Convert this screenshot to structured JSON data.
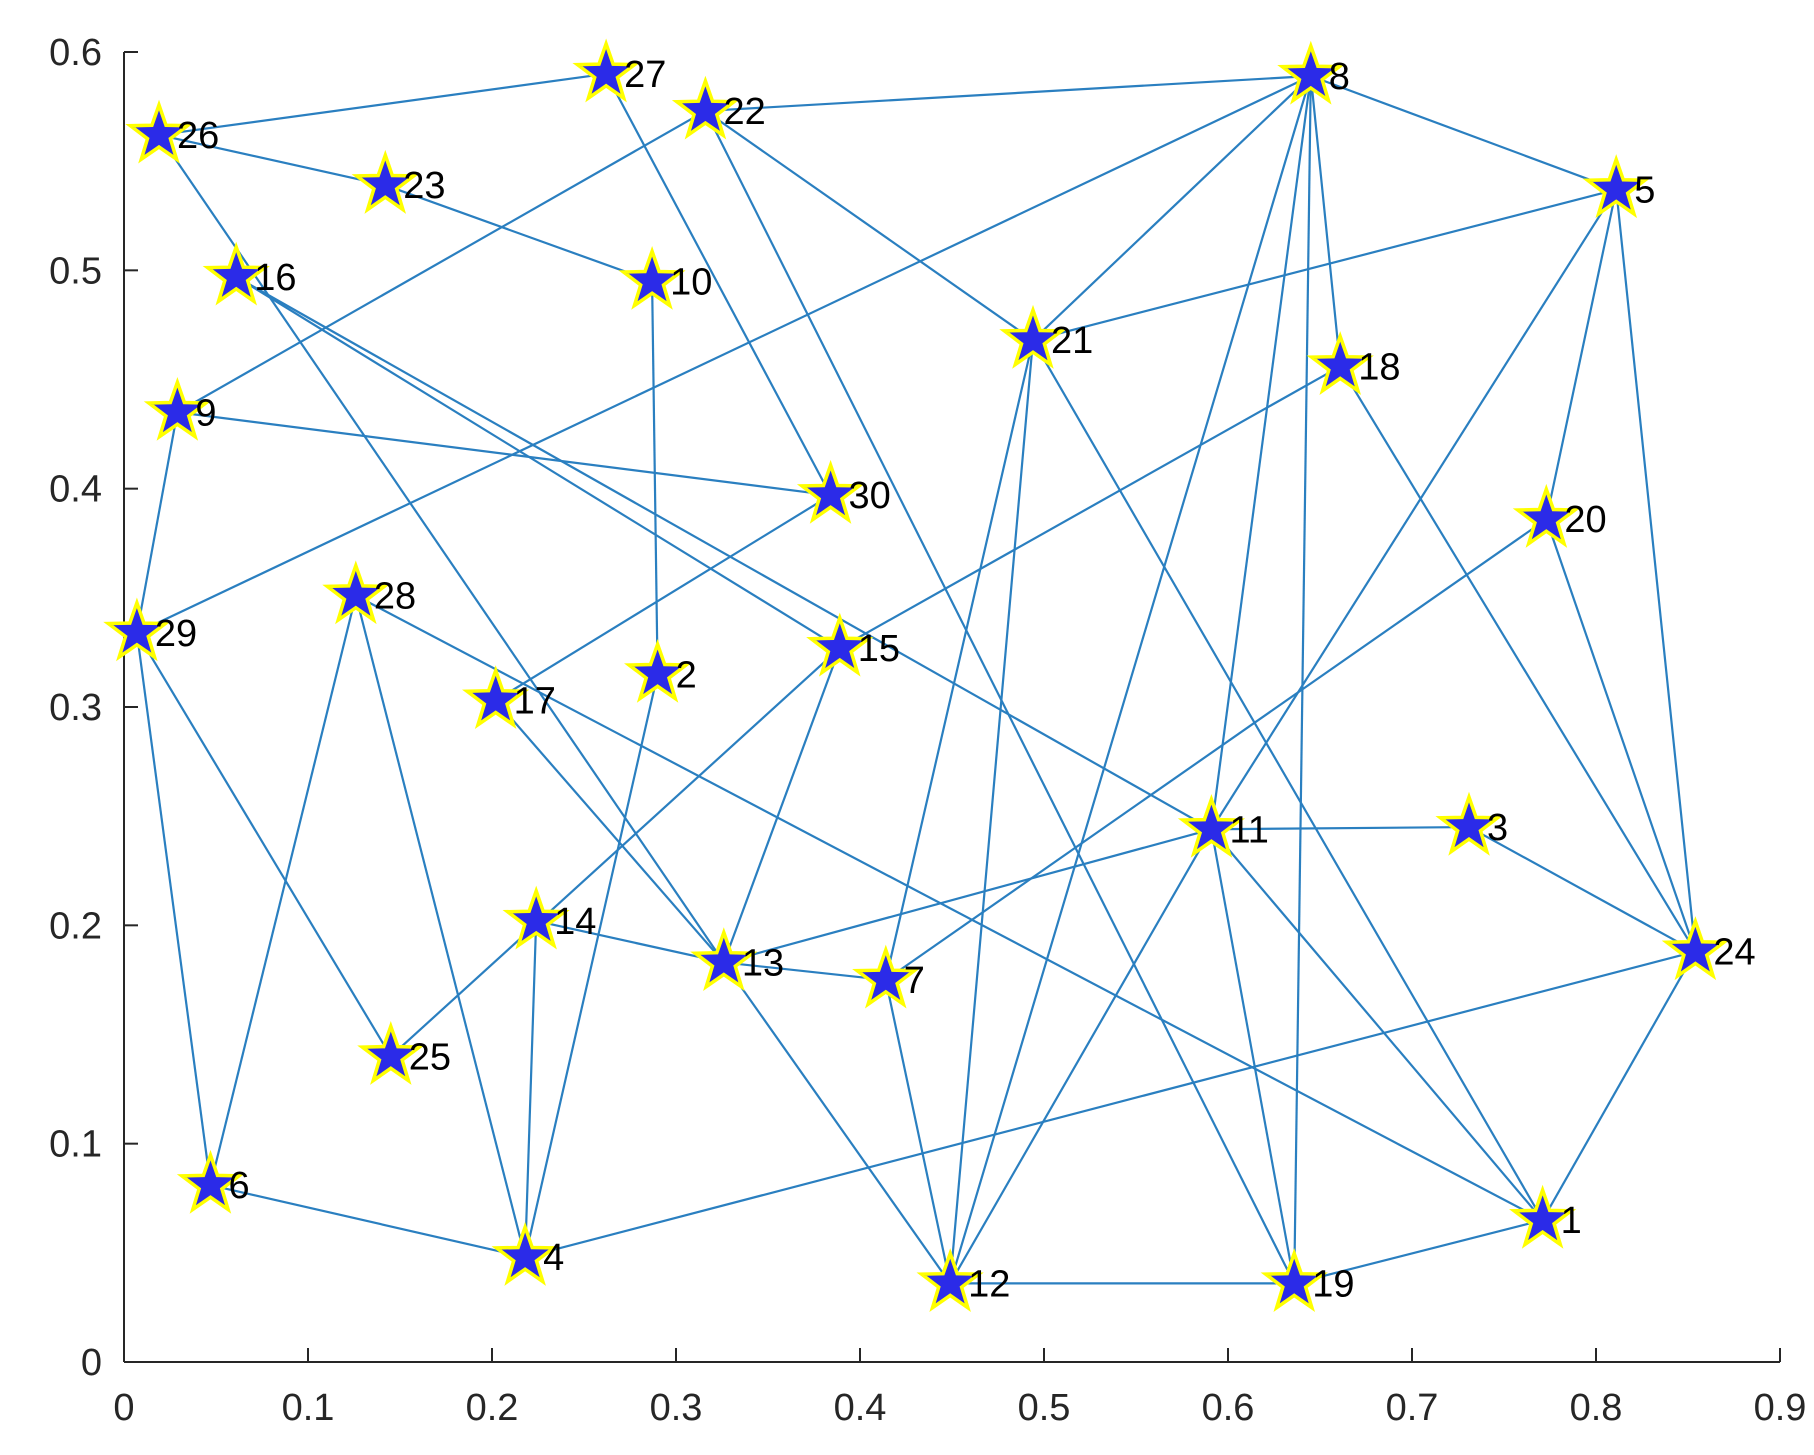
{
  "chart_data": {
    "type": "scatter",
    "title": "",
    "xlabel": "",
    "ylabel": "",
    "xlim": [
      0,
      0.9
    ],
    "ylim": [
      0,
      0.6
    ],
    "x_ticks": [
      "0",
      "0.1",
      "0.2",
      "0.3",
      "0.4",
      "0.5",
      "0.6",
      "0.7",
      "0.8",
      "0.9"
    ],
    "y_ticks": [
      "0",
      "0.1",
      "0.2",
      "0.3",
      "0.4",
      "0.5",
      "0.6"
    ],
    "x_tick_values": [
      0,
      0.1,
      0.2,
      0.3,
      0.4,
      0.5,
      0.6,
      0.7,
      0.8,
      0.9
    ],
    "y_tick_values": [
      0,
      0.1,
      0.2,
      0.3,
      0.4,
      0.5,
      0.6
    ],
    "grid": false,
    "marker": "star",
    "marker_fill": "#2b2be8",
    "marker_edge": "#ffff00",
    "edge_color": "#2a7fc0",
    "nodes": [
      {
        "id": 1,
        "label": "1",
        "x": 0.771,
        "y": 0.065
      },
      {
        "id": 2,
        "label": "2",
        "x": 0.29,
        "y": 0.315
      },
      {
        "id": 3,
        "label": "3",
        "x": 0.731,
        "y": 0.245
      },
      {
        "id": 4,
        "label": "4",
        "x": 0.218,
        "y": 0.048
      },
      {
        "id": 5,
        "label": "5",
        "x": 0.811,
        "y": 0.537
      },
      {
        "id": 6,
        "label": "6",
        "x": 0.047,
        "y": 0.081
      },
      {
        "id": 7,
        "label": "7",
        "x": 0.414,
        "y": 0.175
      },
      {
        "id": 8,
        "label": "8",
        "x": 0.645,
        "y": 0.589
      },
      {
        "id": 9,
        "label": "9",
        "x": 0.029,
        "y": 0.435
      },
      {
        "id": 10,
        "label": "10",
        "x": 0.287,
        "y": 0.495
      },
      {
        "id": 11,
        "label": "11",
        "x": 0.591,
        "y": 0.244
      },
      {
        "id": 12,
        "label": "12",
        "x": 0.449,
        "y": 0.036
      },
      {
        "id": 13,
        "label": "13",
        "x": 0.326,
        "y": 0.183
      },
      {
        "id": 14,
        "label": "14",
        "x": 0.224,
        "y": 0.202
      },
      {
        "id": 15,
        "label": "15",
        "x": 0.389,
        "y": 0.327
      },
      {
        "id": 16,
        "label": "16",
        "x": 0.061,
        "y": 0.497
      },
      {
        "id": 17,
        "label": "17",
        "x": 0.202,
        "y": 0.303
      },
      {
        "id": 18,
        "label": "18",
        "x": 0.661,
        "y": 0.456
      },
      {
        "id": 19,
        "label": "19",
        "x": 0.636,
        "y": 0.036
      },
      {
        "id": 20,
        "label": "20",
        "x": 0.773,
        "y": 0.386
      },
      {
        "id": 21,
        "label": "21",
        "x": 0.494,
        "y": 0.468
      },
      {
        "id": 22,
        "label": "22",
        "x": 0.316,
        "y": 0.573
      },
      {
        "id": 23,
        "label": "23",
        "x": 0.142,
        "y": 0.539
      },
      {
        "id": 24,
        "label": "24",
        "x": 0.854,
        "y": 0.188
      },
      {
        "id": 25,
        "label": "25",
        "x": 0.145,
        "y": 0.14
      },
      {
        "id": 26,
        "label": "26",
        "x": 0.019,
        "y": 0.562
      },
      {
        "id": 27,
        "label": "27",
        "x": 0.262,
        "y": 0.59
      },
      {
        "id": 28,
        "label": "28",
        "x": 0.126,
        "y": 0.351
      },
      {
        "id": 29,
        "label": "29",
        "x": 0.007,
        "y": 0.334
      },
      {
        "id": 30,
        "label": "30",
        "x": 0.384,
        "y": 0.397
      }
    ],
    "edges": [
      [
        26,
        27
      ],
      [
        27,
        30
      ],
      [
        26,
        23
      ],
      [
        23,
        10
      ],
      [
        26,
        13
      ],
      [
        16,
        15
      ],
      [
        16,
        11
      ],
      [
        10,
        2
      ],
      [
        2,
        4
      ],
      [
        28,
        6
      ],
      [
        28,
        4
      ],
      [
        28,
        1
      ],
      [
        29,
        9
      ],
      [
        29,
        6
      ],
      [
        29,
        25
      ],
      [
        29,
        8
      ],
      [
        9,
        30
      ],
      [
        9,
        22
      ],
      [
        22,
        8
      ],
      [
        22,
        21
      ],
      [
        22,
        19
      ],
      [
        30,
        17
      ],
      [
        17,
        13
      ],
      [
        13,
        7
      ],
      [
        13,
        12
      ],
      [
        13,
        11
      ],
      [
        15,
        25
      ],
      [
        15,
        13
      ],
      [
        15,
        18
      ],
      [
        14,
        4
      ],
      [
        14,
        13
      ],
      [
        8,
        21
      ],
      [
        8,
        5
      ],
      [
        8,
        18
      ],
      [
        8,
        11
      ],
      [
        8,
        12
      ],
      [
        8,
        19
      ],
      [
        21,
        5
      ],
      [
        21,
        7
      ],
      [
        21,
        1
      ],
      [
        21,
        12
      ],
      [
        18,
        24
      ],
      [
        5,
        20
      ],
      [
        5,
        24
      ],
      [
        5,
        11
      ],
      [
        20,
        24
      ],
      [
        20,
        7
      ],
      [
        11,
        3
      ],
      [
        11,
        1
      ],
      [
        11,
        19
      ],
      [
        11,
        12
      ],
      [
        3,
        24
      ],
      [
        24,
        1
      ],
      [
        24,
        4
      ],
      [
        12,
        19
      ],
      [
        19,
        1
      ],
      [
        7,
        12
      ],
      [
        6,
        4
      ]
    ]
  }
}
